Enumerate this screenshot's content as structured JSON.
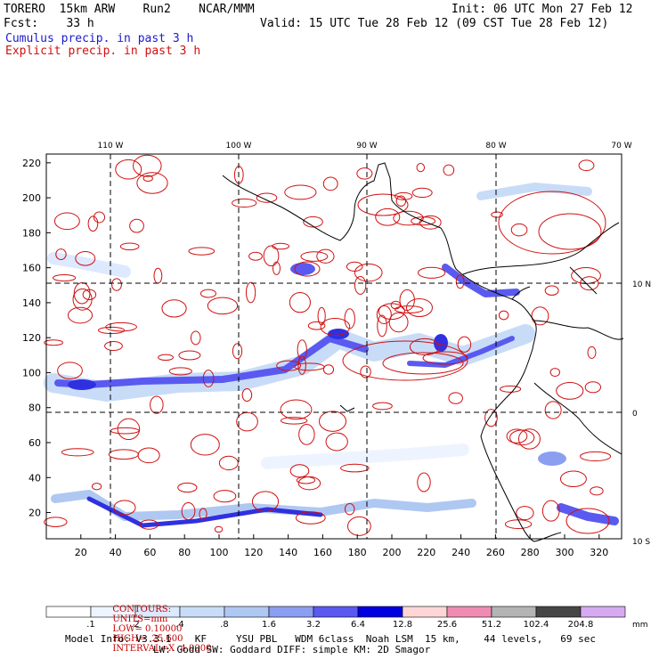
{
  "header": {
    "model_title": "TORERO  15km ARW    Run2    NCAR/MMM",
    "init": "Init: 06 UTC Mon 27 Feb 12",
    "fcst": "Fcst:    33 h",
    "valid": "Valid: 15 UTC Tue 28 Feb 12 (09 CST Tue 28 Feb 12)",
    "cumulus": "Cumulus precip. in past 3 h",
    "explicit": "Explicit precip. in past 3 h"
  },
  "colors": {
    "cumulus": "#1a1ad0",
    "explicit": "#d01010",
    "coast": "#000000",
    "lat_lon_grid": "#000000"
  },
  "chart_data": {
    "type": "heatmap",
    "x_ticks": [
      20,
      40,
      60,
      80,
      100,
      120,
      140,
      160,
      180,
      200,
      220,
      240,
      260,
      280,
      300,
      320
    ],
    "y_ticks": [
      20,
      40,
      60,
      80,
      100,
      120,
      140,
      160,
      180,
      200,
      220
    ],
    "xlim": [
      0,
      333
    ],
    "ylim": [
      5,
      225
    ],
    "lon_labels": [
      "110 W",
      "100 W",
      "90 W",
      "80 W",
      "70 W"
    ],
    "lat_labels": [
      "10 N",
      "0",
      "10 S"
    ],
    "contours_line": {
      "label": "CONTOURS:",
      "units": "UNITS=mm",
      "low": "LOW= 0.10000",
      "high": "HIGH=  25.600",
      "interval": "INTERVAL=X  4.0000"
    },
    "colorbar": {
      "levels": [
        ".1",
        ".2",
        ".4",
        ".8",
        "1.6",
        "3.2",
        "6.4",
        "12.8",
        "25.6",
        "51.2",
        "102.4",
        "204.8"
      ],
      "colors": [
        "#ffffff",
        "#eef4ff",
        "#dde9ff",
        "#c8dcf8",
        "#afc8f2",
        "#8c9ef0",
        "#5a5af0",
        "#0000e0",
        "#ffd6d6",
        "#f08cb4",
        "#b4b4b4",
        "#464646",
        "#d6aaf0"
      ],
      "unit": "mm"
    }
  },
  "footer": {
    "model_info": "Model Info: V3.3.1    KF     YSU PBL   WDM 6class  Noah LSM  15 km,    44 levels,   69 sec",
    "physics": "LW: Godd SW: Goddard DIFF: simple KM: 2D Smagor"
  }
}
